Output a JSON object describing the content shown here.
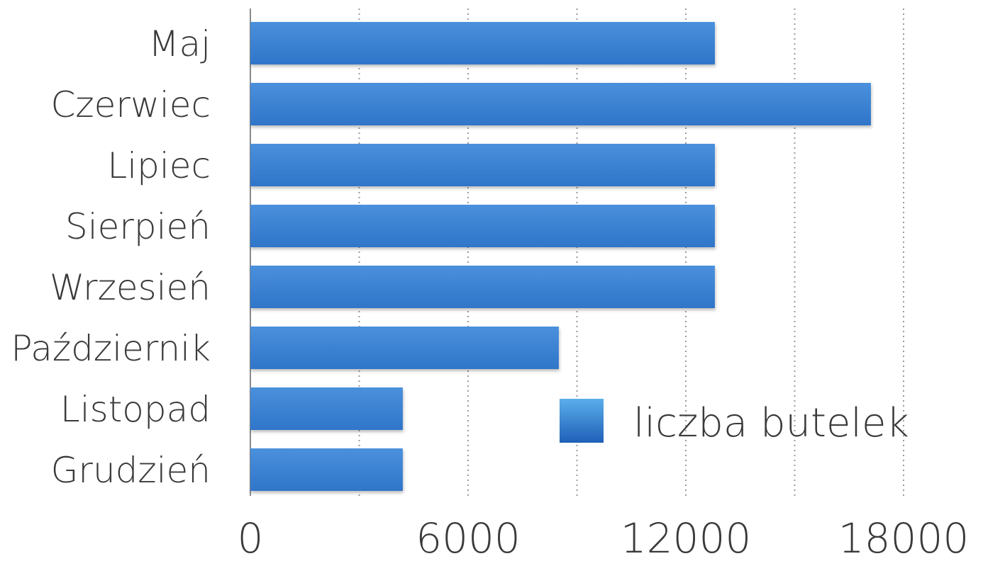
{
  "chart_data": {
    "type": "bar",
    "orientation": "horizontal",
    "categories": [
      "Maj",
      "Czerwiec",
      "Lipiec",
      "Sierpień",
      "Wrzesień",
      "Październik",
      "Listopad",
      "Grudzień"
    ],
    "series": [
      {
        "name": "liczba butelek",
        "values": [
          12800,
          17100,
          12800,
          12800,
          12800,
          8500,
          4200,
          4200
        ]
      }
    ],
    "xlim": [
      0,
      18000
    ],
    "xticks": [
      "0",
      "6000",
      "12000",
      "18000"
    ],
    "grid": {
      "vertical": true,
      "style": "dotted"
    },
    "legend": {
      "position": "bottom-right",
      "entries": [
        "liczba butelek"
      ]
    },
    "colors": {
      "bar_top": "#4a90dc",
      "bar_bottom": "#2f75c9",
      "legend_top": "#5aaeea",
      "legend_bottom": "#1f5fb8",
      "grid": "#9a9a9a",
      "axis": "#8a8a8a",
      "text": "#3a3a3a"
    }
  }
}
